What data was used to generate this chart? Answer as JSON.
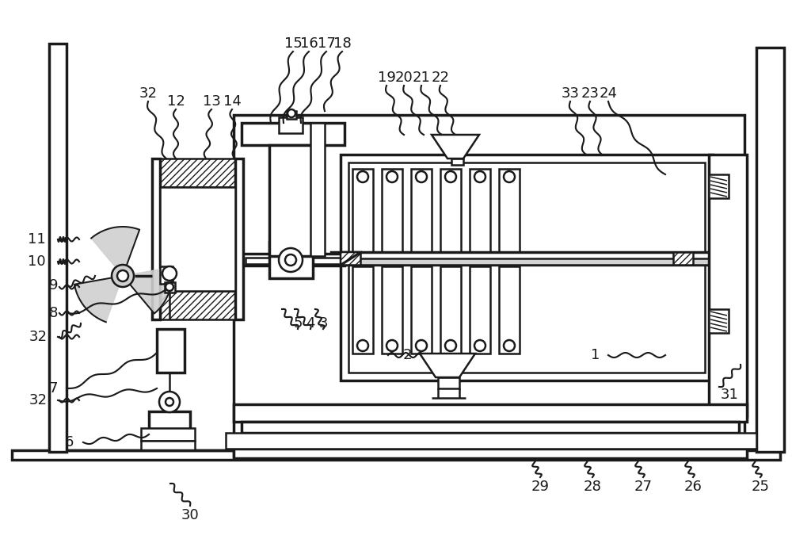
{
  "bg_color": "#ffffff",
  "lc": "#1a1a1a",
  "lw": 1.8,
  "lw2": 2.5,
  "fig_w": 10.0,
  "fig_h": 6.85,
  "dpi": 100
}
